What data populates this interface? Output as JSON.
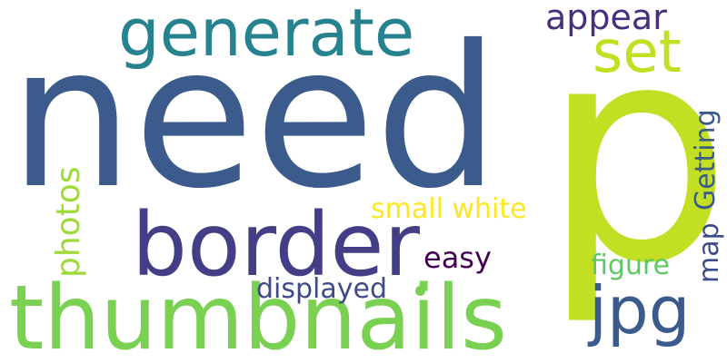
{
  "words": [
    {
      "id": "need",
      "text": "need",
      "color": "#3b5b8c"
    },
    {
      "id": "p",
      "text": "p",
      "color": "#c2df23"
    },
    {
      "id": "thumbnails",
      "text": "thumbnails",
      "color": "#7ad151"
    },
    {
      "id": "border",
      "text": "border",
      "color": "#433e85"
    },
    {
      "id": "generate",
      "text": "generate",
      "color": "#26828e"
    },
    {
      "id": "jpg",
      "text": "jpg",
      "color": "#3b5b8c"
    },
    {
      "id": "set",
      "text": "set",
      "color": "#c2df23"
    },
    {
      "id": "appear",
      "text": "appear",
      "color": "#472f7d"
    },
    {
      "id": "photos",
      "text": "photos",
      "color": "#a0da39"
    },
    {
      "id": "small-white",
      "text": "small white",
      "color": "#fde725"
    },
    {
      "id": "getting",
      "text": "Getting",
      "color": "#3b5b8c"
    },
    {
      "id": "easy",
      "text": "easy",
      "color": "#440154"
    },
    {
      "id": "displayed",
      "text": "displayed",
      "color": "#3e4a89"
    },
    {
      "id": "figure",
      "text": "figure",
      "color": "#5ec962"
    },
    {
      "id": "map",
      "text": "map",
      "color": "#3e4a89"
    }
  ],
  "dot_color": "#7ad151"
}
